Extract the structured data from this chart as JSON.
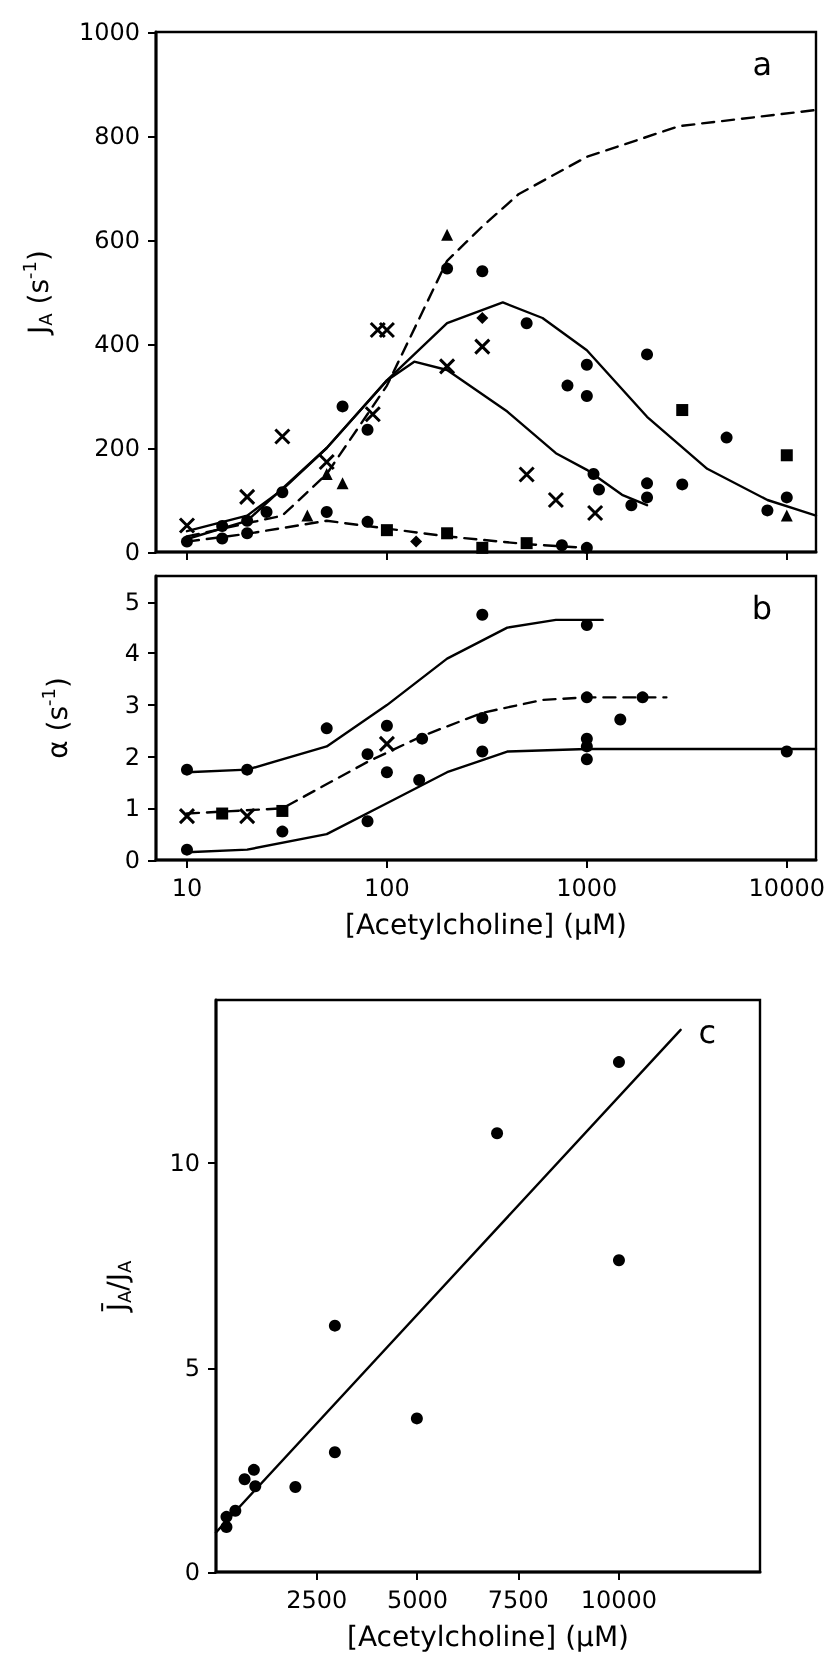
{
  "chart_data": [
    {
      "type": "scatter",
      "ylabel": "J$_{A}$ (s$^{-1}$)",
      "annotations": [
        "a"
      ],
      "log": "x",
      "xlim": [
        7,
        14000
      ],
      "xticks": [
        10,
        100,
        1000,
        10000
      ],
      "ylim": [
        0,
        1000
      ],
      "yticks": [
        0,
        200,
        400,
        600,
        800,
        1000
      ],
      "tick_labels": "y",
      "grid": false,
      "legend": false,
      "series": [
        {
          "color": "#000000",
          "marker": "circle",
          "x": [
            15,
            20,
            30,
            60,
            80,
            200,
            300,
            500,
            800,
            1000,
            1000,
            2000,
            3000,
            5000,
            8000,
            10000
          ],
          "values": [
            50,
            60,
            115,
            280,
            235,
            545,
            540,
            440,
            320,
            360,
            300,
            380,
            130,
            220,
            80,
            105
          ]
        },
        {
          "color": "#000000",
          "marker": "diamond",
          "x": [
            300
          ],
          "values": [
            450
          ]
        },
        {
          "color": "#000000",
          "marker": "triangle",
          "x": [
            50,
            200,
            10000
          ],
          "values": [
            150,
            610,
            70
          ]
        },
        {
          "color": "#000000",
          "marker": "square",
          "x": [
            3000,
            10000
          ],
          "values": [
            273,
            186
          ]
        },
        {
          "color": "#000000",
          "marker": "triangle",
          "x": [
            40,
            60
          ],
          "values": [
            70,
            132
          ]
        },
        {
          "color": "#000000",
          "marker": "circle",
          "x": [
            10,
            15,
            20,
            25,
            50,
            80,
            750,
            1000
          ],
          "values": [
            20,
            26,
            36,
            77,
            77,
            58,
            13,
            8
          ]
        },
        {
          "color": "#000000",
          "marker": "square",
          "x": [
            100,
            200,
            300,
            500
          ],
          "values": [
            42,
            36,
            8,
            17
          ]
        },
        {
          "color": "#000000",
          "marker": "diamond",
          "x": [
            140
          ],
          "values": [
            20
          ]
        },
        {
          "color": "#000000",
          "marker": "cross",
          "x": [
            30,
            50,
            85,
            100,
            200,
            300,
            500,
            700,
            1100
          ],
          "values": [
            222,
            173,
            265,
            427,
            357,
            395,
            149,
            100,
            75
          ]
        },
        {
          "color": "#000000",
          "marker": "cross",
          "x": [
            10,
            20,
            90
          ],
          "values": [
            51,
            106,
            427
          ]
        },
        {
          "color": "#000000",
          "marker": "circle",
          "x": [
            1080,
            1150,
            1670,
            2000,
            2000
          ],
          "values": [
            150,
            120,
            90,
            132,
            105
          ]
        },
        {
          "type": "line",
          "color": "#000000",
          "line_style": "solid",
          "marker": "none",
          "x": [
            10,
            20,
            30,
            50,
            100,
            200,
            380,
            600,
            1000,
            2000,
            4000,
            8000,
            14000
          ],
          "values": [
            40,
            70,
            120,
            200,
            330,
            440,
            480,
            450,
            388,
            260,
            160,
            100,
            70
          ]
        },
        {
          "type": "line",
          "color": "#000000",
          "line_style": "solid",
          "marker": "none",
          "x": [
            10,
            20,
            50,
            100,
            137,
            200,
            400,
            700,
            1000,
            1500,
            2000
          ],
          "values": [
            25,
            60,
            200,
            330,
            366,
            350,
            270,
            190,
            158,
            110,
            90
          ]
        },
        {
          "type": "line",
          "color": "#000000",
          "line_style": "dashed",
          "marker": "none",
          "x": [
            10,
            30,
            50,
            100,
            200,
            300,
            455,
            1000,
            2900,
            14000
          ],
          "values": [
            30,
            70,
            150,
            320,
            560,
            626,
            688,
            760,
            819,
            850
          ]
        },
        {
          "type": "line",
          "color": "#000000",
          "line_style": "dashed",
          "marker": "none",
          "x": [
            10,
            20,
            50,
            100,
            200,
            500,
            1000
          ],
          "values": [
            20,
            35,
            60,
            45,
            30,
            15,
            8
          ]
        }
      ]
    },
    {
      "type": "scatter",
      "xlabel": "[Acetylcholine] (μM)",
      "ylabel": "α (s$^{-1}$)",
      "annotations": [
        "b"
      ],
      "log": "x",
      "xlim": [
        7,
        14000
      ],
      "xticks": [
        10,
        100,
        1000,
        10000
      ],
      "ylim": [
        0,
        5.5
      ],
      "yticks": [
        0,
        1,
        2,
        3,
        4,
        5
      ],
      "grid": false,
      "legend": false,
      "series": [
        {
          "color": "#000000",
          "marker": "circle",
          "x": [
            10,
            20,
            50,
            100,
            300,
            1000
          ],
          "values": [
            1.75,
            1.75,
            2.55,
            2.6,
            4.75,
            4.55
          ]
        },
        {
          "color": "#000000",
          "marker": "circle",
          "x": [
            80,
            150,
            300,
            1000,
            1470,
            1900
          ],
          "values": [
            2.05,
            2.35,
            2.75,
            3.15,
            2.72,
            3.15
          ]
        },
        {
          "color": "#000000",
          "marker": "cross",
          "x": [
            10,
            20,
            100
          ],
          "values": [
            0.85,
            0.85,
            2.25
          ]
        },
        {
          "color": "#000000",
          "marker": "square",
          "x": [
            15,
            30
          ],
          "values": [
            0.9,
            0.95
          ]
        },
        {
          "color": "#000000",
          "marker": "circle",
          "x": [
            10,
            30,
            80,
            100,
            145,
            300,
            1000,
            1000,
            1000,
            10000
          ],
          "values": [
            0.2,
            0.55,
            0.75,
            1.7,
            1.55,
            2.1,
            2.35,
            2.2,
            1.95,
            2.1
          ]
        },
        {
          "type": "line",
          "color": "#000000",
          "line_style": "solid",
          "marker": "none",
          "x": [
            10,
            20,
            50,
            100,
            200,
            400,
            700,
            1200
          ],
          "values": [
            1.7,
            1.75,
            2.2,
            3.0,
            3.9,
            4.5,
            4.65,
            4.65
          ]
        },
        {
          "type": "line",
          "color": "#000000",
          "line_style": "dashed",
          "marker": "none",
          "x": [
            10,
            30,
            80,
            150,
            300,
            600,
            1000,
            2500
          ],
          "values": [
            0.9,
            1.0,
            1.9,
            2.4,
            2.85,
            3.1,
            3.15,
            3.15
          ]
        },
        {
          "type": "line",
          "color": "#000000",
          "line_style": "solid",
          "marker": "none",
          "x": [
            10,
            20,
            50,
            100,
            200,
            400,
            1000,
            10000,
            14000
          ],
          "values": [
            0.15,
            0.2,
            0.5,
            1.1,
            1.7,
            2.1,
            2.15,
            2.15,
            2.15
          ]
        }
      ]
    },
    {
      "type": "scatter",
      "xlabel": "[Acetylcholine] (μM)",
      "ylabel": "J̄$_{A}$/J$_{A}$",
      "annotations": [
        "c"
      ],
      "xlim": [
        0,
        13500
      ],
      "xticks": [
        2500,
        5000,
        7500,
        10000
      ],
      "ylim": [
        0,
        14
      ],
      "yticks": [
        0,
        5,
        10
      ],
      "grid": false,
      "legend": false,
      "series": [
        {
          "color": "#000000",
          "marker": "circle",
          "x": [
            260,
            260,
            480,
            710,
            940,
            975,
            1970,
            2950,
            2950,
            4985,
            6975,
            10000,
            10000
          ],
          "values": [
            1.1,
            1.35,
            1.5,
            2.27,
            2.5,
            2.1,
            2.08,
            2.93,
            6.03,
            3.76,
            10.74,
            12.48,
            7.63
          ]
        },
        {
          "type": "line",
          "color": "#000000",
          "line_style": "solid",
          "marker": "none",
          "x": [
            0,
            11530
          ],
          "values": [
            0.97,
            13.27
          ]
        }
      ]
    }
  ]
}
